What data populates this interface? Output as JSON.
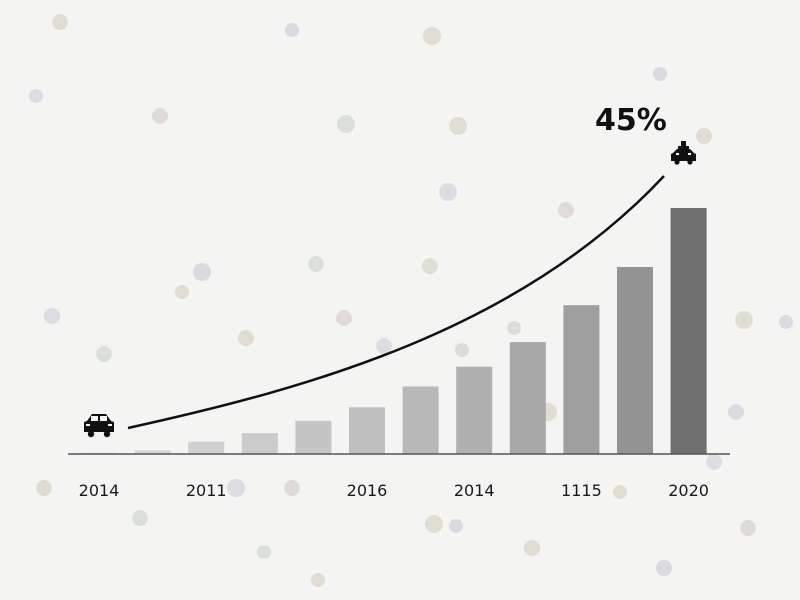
{
  "chart_data": {
    "type": "bar",
    "title": "",
    "xlabel": "",
    "ylabel": "",
    "categories": [
      "2014",
      "",
      "2011",
      "",
      "",
      "2016",
      "",
      "2014",
      "",
      "1115",
      "",
      "2020"
    ],
    "values": [
      0.5,
      1.5,
      5,
      8.5,
      13.5,
      19,
      27.5,
      35.5,
      45.5,
      60.5,
      76,
      100
    ],
    "ylim": [
      0,
      100
    ],
    "grid": false,
    "legend": "none",
    "trend_curve": true,
    "annotation": "45%",
    "bar_colors": [
      "#dcdcdc",
      "#d6d6d6",
      "#d0d0d0",
      "#cbcbcb",
      "#c5c5c5",
      "#bfbfbf",
      "#b8b8b8",
      "#b0b0b0",
      "#a8a8a8",
      "#9f9f9f",
      "#939393",
      "#6f6f6f"
    ],
    "curve_color": "#111111",
    "axis_color": "#555555",
    "icons": {
      "start": "car-icon",
      "end": "robot-car-icon"
    }
  }
}
